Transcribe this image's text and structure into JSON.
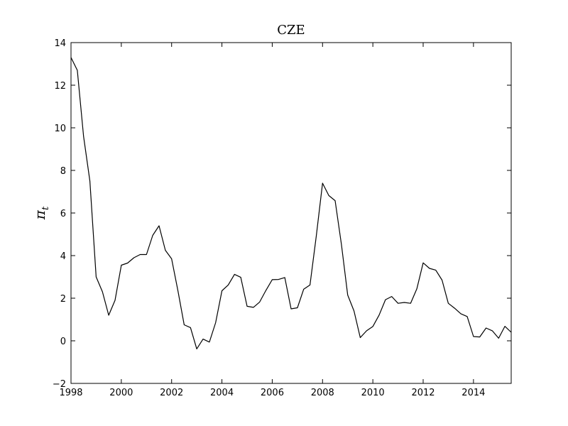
{
  "chart_data": {
    "type": "line",
    "title": "CZE",
    "xlabel": "",
    "ylabel": "π",
    "ylabel_subscript": "t",
    "xlim": [
      1998,
      2015.5
    ],
    "ylim": [
      -2,
      14
    ],
    "x_ticks": [
      1998,
      2000,
      2002,
      2004,
      2006,
      2008,
      2010,
      2012,
      2014
    ],
    "y_ticks": [
      -2,
      0,
      2,
      4,
      6,
      8,
      10,
      12,
      14
    ],
    "x_tick_labels": [
      "1998",
      "2000",
      "2002",
      "2004",
      "2006",
      "2008",
      "2010",
      "2012",
      "2014"
    ],
    "y_tick_labels": [
      "−2",
      "0",
      "2",
      "4",
      "6",
      "8",
      "10",
      "12",
      "14"
    ],
    "grid": false,
    "line_color": "#000000",
    "series": [
      {
        "x": [
          1998.0,
          1998.25,
          1998.5,
          1998.75,
          1999.0,
          1999.25,
          1999.5,
          1999.75,
          2000.0,
          2000.25,
          2000.5,
          2000.75,
          2001.0,
          2001.25,
          2001.5,
          2001.75,
          2002.0,
          2002.25,
          2002.5,
          2002.75,
          2003.0,
          2003.25,
          2003.5,
          2003.75,
          2004.0,
          2004.25,
          2004.5,
          2004.75,
          2005.0,
          2005.25,
          2005.5,
          2005.75,
          2006.0,
          2006.25,
          2006.5,
          2006.75,
          2007.0,
          2007.25,
          2007.5,
          2007.75,
          2008.0,
          2008.25,
          2008.5,
          2008.75,
          2009.0,
          2009.25,
          2009.5,
          2009.75,
          2010.0,
          2010.25,
          2010.5,
          2010.75,
          2011.0,
          2011.25,
          2011.5,
          2011.75,
          2012.0,
          2012.25,
          2012.5,
          2012.75,
          2013.0,
          2013.25,
          2013.5,
          2013.75,
          2014.0,
          2014.25,
          2014.5,
          2014.75,
          2015.0,
          2015.25,
          2015.5
        ],
        "values": [
          13.3,
          12.7,
          9.6,
          7.5,
          3.0,
          2.3,
          1.2,
          1.9,
          3.55,
          3.65,
          3.9,
          4.05,
          4.05,
          4.95,
          5.4,
          4.25,
          3.85,
          2.35,
          0.75,
          0.62,
          -0.38,
          0.08,
          -0.06,
          0.85,
          2.35,
          2.62,
          3.12,
          2.98,
          1.62,
          1.57,
          1.82,
          2.37,
          2.87,
          2.88,
          2.97,
          1.5,
          1.55,
          2.42,
          2.62,
          4.9,
          7.4,
          6.82,
          6.58,
          4.52,
          2.15,
          1.4,
          0.15,
          0.47,
          0.67,
          1.21,
          1.93,
          2.08,
          1.76,
          1.8,
          1.76,
          2.44,
          3.66,
          3.4,
          3.32,
          2.85,
          1.76,
          1.53,
          1.27,
          1.14,
          0.2,
          0.18,
          0.6,
          0.47,
          0.12,
          0.68,
          0.4
        ]
      }
    ]
  }
}
